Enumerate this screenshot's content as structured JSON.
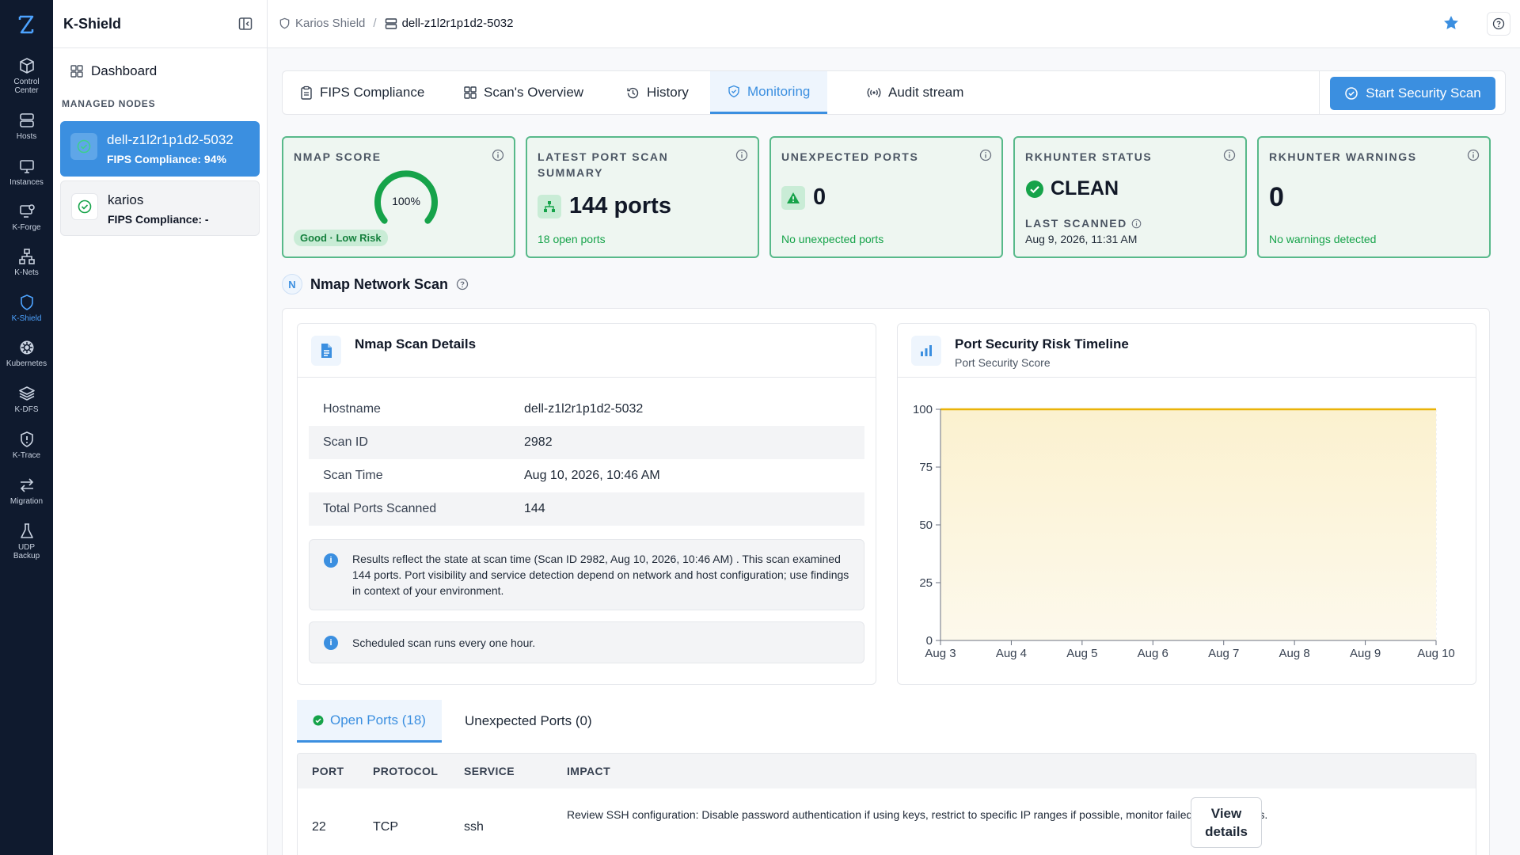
{
  "rail": {
    "items": [
      {
        "label": "Control Center",
        "label2": "Center",
        "icon": "cube-icon"
      },
      {
        "label": "Hosts",
        "icon": "server-icon"
      },
      {
        "label": "Instances",
        "icon": "monitor-icon"
      },
      {
        "label": "K-Forge",
        "icon": "forge-icon"
      },
      {
        "label": "K-Nets",
        "icon": "network-icon"
      },
      {
        "label": "K-Shield",
        "icon": "shield-icon"
      },
      {
        "label": "Kubernetes",
        "icon": "kubernetes-icon"
      },
      {
        "label": "K-DFS",
        "icon": "layers-icon"
      },
      {
        "label": "K-Trace",
        "icon": "trace-icon"
      },
      {
        "label": "Migration",
        "icon": "arrows-icon"
      },
      {
        "label": "UDP Backup",
        "icon": "flask-icon"
      }
    ]
  },
  "sidebar": {
    "title": "K-Shield",
    "dashboard_label": "Dashboard",
    "section_label": "MANAGED NODES",
    "nodes": [
      {
        "name": "dell-z1l2r1p1d2-5032",
        "sub": "FIPS Compliance: 94%"
      },
      {
        "name": "karios",
        "sub": "FIPS Compliance: -"
      }
    ]
  },
  "breadcrumb": {
    "root": "Karios Shield",
    "separator": "/",
    "current": "dell-z1l2r1p1d2-5032"
  },
  "tabs": [
    {
      "label": "FIPS Compliance"
    },
    {
      "label": "Scan's Overview"
    },
    {
      "label": "History"
    },
    {
      "label": "Monitoring"
    },
    {
      "label": "Audit stream"
    }
  ],
  "start_scan_label": "Start Security Scan",
  "stats": {
    "nmap": {
      "label": "NMAP SCORE",
      "value_text": "100%",
      "value": 100,
      "badge": "Good · Low Risk"
    },
    "port_summary": {
      "label_line1": "LATEST PORT SCAN",
      "label_line2": "SUMMARY",
      "value": "144 ports",
      "foot": "18 open ports"
    },
    "unexpected": {
      "label": "UNEXPECTED PORTS",
      "value": "0",
      "foot": "No unexpected ports"
    },
    "rkhunter": {
      "label": "RKHUNTER STATUS",
      "value": "CLEAN",
      "sub_label": "LAST SCANNED",
      "sub_value": "Aug 9, 2026, 11:31 AM"
    },
    "rk_warnings": {
      "label": "RKHUNTER WARNINGS",
      "value": "0",
      "foot": "No warnings detected"
    }
  },
  "section": {
    "badge": "N",
    "title": "Nmap Network Scan"
  },
  "details": {
    "title": "Nmap Scan Details",
    "rows": [
      {
        "key": "Hostname",
        "value": "dell-z1l2r1p1d2-5032"
      },
      {
        "key": "Scan ID",
        "value": "2982"
      },
      {
        "key": "Scan Time",
        "value": "Aug 10, 2026, 10:46 AM"
      },
      {
        "key": "Total Ports Scanned",
        "value": "144"
      }
    ],
    "note1": "Results reflect the state at scan time (Scan ID 2982, Aug 10, 2026, 10:46 AM) . This scan examined 144 ports. Port visibility and service detection depend on network and host configuration; use findings in context of your environment.",
    "note2": "Scheduled scan runs every one hour.",
    "info_glyph": "i"
  },
  "chart_panel": {
    "title": "Port Security Risk Timeline",
    "subtitle": "Port Security Score"
  },
  "chart_data": {
    "type": "area",
    "x": [
      "Aug 3",
      "Aug 4",
      "Aug 5",
      "Aug 6",
      "Aug 7",
      "Aug 8",
      "Aug 9",
      "Aug 10"
    ],
    "series": [
      {
        "values": [
          100,
          100,
          100,
          100,
          100,
          100,
          100,
          100
        ]
      }
    ],
    "ylim": [
      0,
      100
    ],
    "yticks": [
      0,
      25,
      50,
      75,
      100
    ],
    "grid": true,
    "line_color": "#eab308"
  },
  "port_tabs": [
    {
      "label": "Open Ports (18)"
    },
    {
      "label": "Unexpected Ports (0)"
    }
  ],
  "ports_table": {
    "headers": [
      "PORT",
      "PROTOCOL",
      "SERVICE",
      "IMPACT"
    ],
    "rows": [
      {
        "port": "22",
        "protocol": "TCP",
        "service": "ssh",
        "impact": "Review SSH configuration: Disable password authentication if using keys, restrict to specific IP ranges if possible, monitor failed login attempts.",
        "action": "View details"
      }
    ]
  },
  "colors": {
    "accent": "#3b8fe0",
    "success": "#16a34a",
    "rail_bg": "#0f1a2e"
  }
}
